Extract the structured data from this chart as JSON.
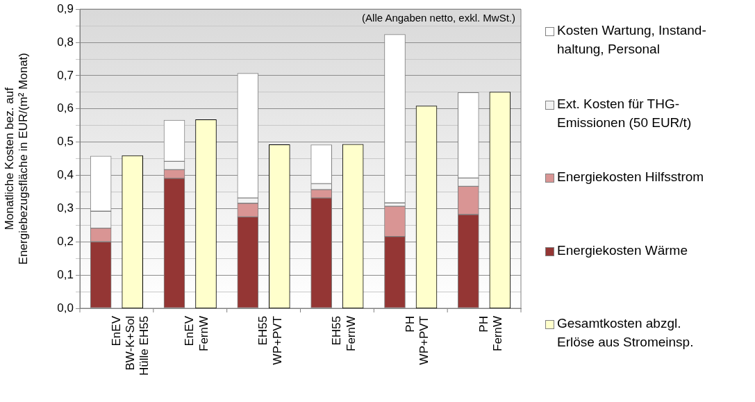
{
  "chart_data": [
    {
      "type": "bar",
      "stacked": true,
      "ylabel": "Monatliche Kosten bez. auf\nEnergiebezugsfläche in EUR/(m² Monat)",
      "categories": [
        "EnEV\nBW-K+Sol\nHülle EH55",
        "EnEV\nFernW",
        "EH55\nWP+PVT",
        "EH55\nFernW",
        "PH\nWP+PVT",
        "PH\nFernW"
      ],
      "series": [
        {
          "name": "Energiekosten Wärme",
          "color": "#943634",
          "values": [
            0.2,
            0.391,
            0.275,
            0.332,
            0.216,
            0.282
          ]
        },
        {
          "name": "Energiekosten Hilfsstrom",
          "color": "#d99594",
          "values": [
            0.041,
            0.026,
            0.041,
            0.025,
            0.091,
            0.085
          ]
        },
        {
          "name": "Ext. Kosten für THG-\nEmissionen (50 EUR/t)",
          "color": "#f2f2f2",
          "values": [
            0.051,
            0.025,
            0.016,
            0.018,
            0.01,
            0.025
          ]
        },
        {
          "name": "Kosten Wartung, Instand-\nhaltung, Personal",
          "color": "#ffffff",
          "values": [
            0.166,
            0.124,
            0.375,
            0.117,
            0.507,
            0.257
          ]
        }
      ],
      "ylim": [
        0,
        0.9
      ],
      "yticks": [
        {
          "value": 0,
          "label": "0,0"
        },
        {
          "value": 0.05,
          "label": null
        },
        {
          "value": 0.1,
          "label": "0,1"
        },
        {
          "value": 0.15,
          "label": null
        },
        {
          "value": 0.2,
          "label": "0,2"
        },
        {
          "value": 0.25,
          "label": null
        },
        {
          "value": 0.3,
          "label": "0,3"
        },
        {
          "value": 0.35,
          "label": null
        },
        {
          "value": 0.4,
          "label": "0,4"
        },
        {
          "value": 0.45,
          "label": null
        },
        {
          "value": 0.5,
          "label": "0,5"
        },
        {
          "value": 0.55,
          "label": null
        },
        {
          "value": 0.6,
          "label": "0,6"
        },
        {
          "value": 0.65,
          "label": null
        },
        {
          "value": 0.7,
          "label": "0,7"
        },
        {
          "value": 0.75,
          "label": null
        },
        {
          "value": 0.8,
          "label": "0,8"
        },
        {
          "value": 0.85,
          "label": null
        },
        {
          "value": 0.9,
          "label": "0,9"
        }
      ],
      "grid": true,
      "legend": "right",
      "annotations": [
        "(Alle Angaben netto, exkl. MwSt.)"
      ]
    },
    {
      "type": "bar",
      "categories": [
        null,
        null,
        null,
        null,
        null,
        null
      ],
      "series": [
        {
          "name": "Gesamtkosten abzgl.\nErlöse aus Stromeinsp.",
          "color": "#ffffcc",
          "values": [
            0.458,
            0.566,
            0.491,
            0.492,
            0.607,
            0.649
          ]
        }
      ],
      "ylim": [
        0,
        0.9
      ],
      "legend": "right"
    }
  ]
}
